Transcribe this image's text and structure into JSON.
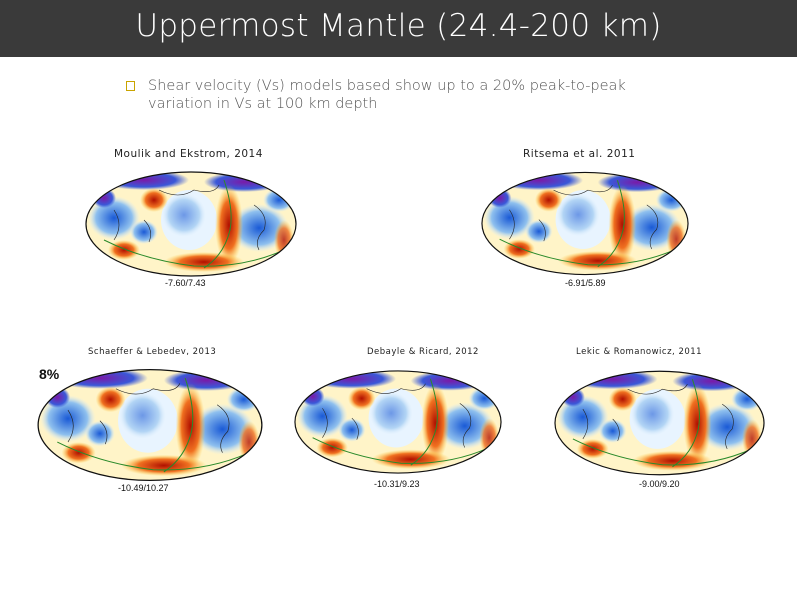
{
  "slide": {
    "title": "Uppermost Mantle (24.4-200 km)",
    "bullet": "Shear velocity (Vs) models based show up to a 20% peak-to-peak variation in Vs at 100 km depth",
    "scale_label": "8%"
  },
  "maps": [
    {
      "label": "Moulik and Ekstrom, 2014",
      "range": "-7.60/7.43"
    },
    {
      "label": "Ritsema et al. 2011",
      "range": "-6.91/5.89"
    },
    {
      "label": "Schaeffer & Lebedev, 2013",
      "range": "-10.49/10.27"
    },
    {
      "label": "Debayle & Ricard, 2012",
      "range": "-10.31/9.23"
    },
    {
      "label": "Lekic & Romanowicz, 2011",
      "range": "-9.00/9.20"
    }
  ],
  "colors": {
    "titlebar": "#3a3a3a",
    "slow": "#c81e00",
    "fast": "#1a5ad6",
    "very_fast": "#8a1fb0"
  }
}
